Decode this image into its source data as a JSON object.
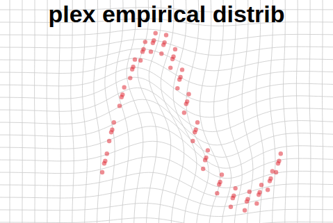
{
  "chart_data": {
    "type": "scatter",
    "title": "plex empirical distrib",
    "color": "#e0303a",
    "xlim": [
      0,
      10
    ],
    "ylim": [
      -2,
      2
    ],
    "tick_labels": false,
    "x": [
      3.13,
      3.21,
      3.07,
      3.16,
      3.34,
      3.42,
      3.28,
      3.37,
      3.65,
      3.73,
      3.59,
      3.68,
      3.97,
      4.05,
      3.91,
      4.0,
      4.28,
      4.36,
      4.22,
      4.31,
      4.59,
      4.67,
      4.53,
      4.62,
      4.91,
      4.99,
      4.85,
      4.94,
      5.18,
      5.26,
      5.12,
      5.21,
      5.39,
      5.47,
      5.33,
      5.42,
      5.59,
      5.67,
      5.53,
      5.62,
      5.85,
      5.93,
      5.79,
      5.88,
      6.16,
      6.24,
      6.1,
      6.19,
      6.58,
      6.66,
      6.52,
      6.61,
      6.99,
      7.07,
      6.93,
      7.02,
      7.41,
      7.49,
      7.35,
      7.44,
      7.77,
      7.85,
      7.71,
      7.8,
      8.1,
      8.18,
      8.04,
      8.13,
      8.35,
      8.43,
      8.29,
      8.38
    ],
    "values": [
      -0.78,
      -0.58,
      -0.96,
      -0.73,
      -0.14,
      0.06,
      -0.32,
      -0.09,
      0.58,
      0.78,
      0.4,
      0.63,
      1.15,
      1.35,
      0.97,
      1.2,
      1.51,
      1.71,
      1.33,
      1.56,
      1.69,
      1.89,
      1.51,
      1.74,
      1.65,
      1.85,
      1.47,
      1.7,
      1.36,
      1.56,
      1.18,
      1.41,
      0.94,
      1.14,
      0.76,
      0.99,
      0.44,
      0.64,
      0.26,
      0.49,
      -0.14,
      0.06,
      -0.32,
      -0.09,
      -0.71,
      -0.51,
      -0.89,
      -0.66,
      -1.21,
      -1.01,
      -1.39,
      -1.16,
      -1.49,
      -1.29,
      -1.67,
      -1.44,
      -1.56,
      -1.36,
      -1.74,
      -1.51,
      -1.42,
      -1.22,
      -1.6,
      -1.37,
      -1.14,
      -0.94,
      -1.32,
      -1.09,
      -0.78,
      -0.58,
      -0.96,
      -0.73
    ]
  }
}
